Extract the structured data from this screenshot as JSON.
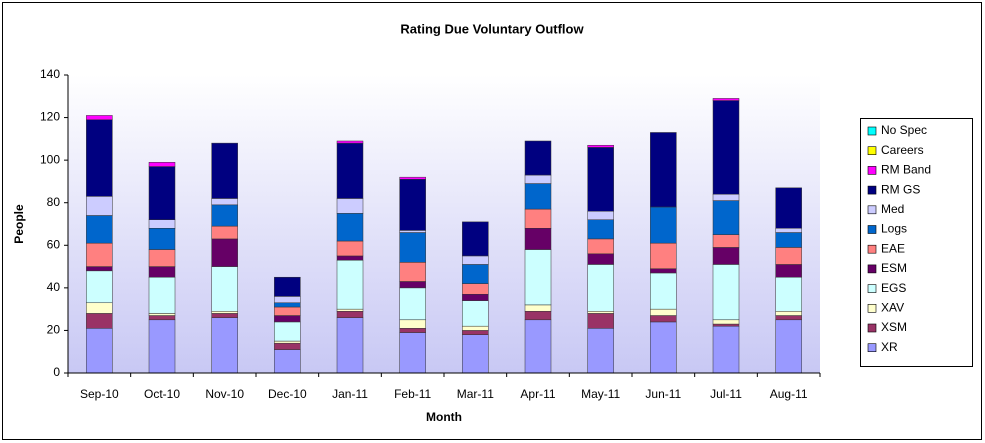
{
  "chart_data": {
    "type": "stacked_bar",
    "title": "Rating Due Voluntary Outflow",
    "x_label": "Month",
    "y_label": "People",
    "categories": [
      "Sep-10",
      "Oct-10",
      "Nov-10",
      "Dec-10",
      "Jan-11",
      "Feb-11",
      "Mar-11",
      "Apr-11",
      "May-11",
      "Jun-11",
      "Jul-11",
      "Aug-11"
    ],
    "series": [
      {
        "name": "XR",
        "color": "#9999ff",
        "values": [
          21,
          25,
          26,
          11,
          26,
          19,
          18,
          25,
          21,
          24,
          22,
          25
        ]
      },
      {
        "name": "XSM",
        "color": "#993366",
        "values": [
          7,
          2,
          2,
          3,
          3,
          2,
          2,
          4,
          7,
          3,
          1,
          2
        ]
      },
      {
        "name": "XAV",
        "color": "#ffffcc",
        "values": [
          5,
          1,
          1,
          1,
          1,
          4,
          2,
          3,
          1,
          3,
          2,
          2
        ]
      },
      {
        "name": "EGS",
        "color": "#ccffff",
        "values": [
          15,
          17,
          21,
          9,
          23,
          15,
          12,
          26,
          22,
          17,
          26,
          16
        ]
      },
      {
        "name": "ESM",
        "color": "#660066",
        "values": [
          2,
          5,
          13,
          3,
          2,
          3,
          3,
          10,
          5,
          2,
          8,
          6
        ]
      },
      {
        "name": "EAE",
        "color": "#ff8080",
        "values": [
          11,
          8,
          6,
          4,
          7,
          9,
          5,
          9,
          7,
          12,
          6,
          8
        ]
      },
      {
        "name": "Logs",
        "color": "#0066cc",
        "values": [
          13,
          10,
          10,
          2,
          13,
          14,
          9,
          12,
          9,
          17,
          16,
          7
        ]
      },
      {
        "name": "Med",
        "color": "#ccccff",
        "values": [
          9,
          4,
          3,
          3,
          7,
          1,
          4,
          4,
          4,
          0,
          3,
          2
        ]
      },
      {
        "name": "RM GS",
        "color": "#000080",
        "values": [
          36,
          25,
          26,
          9,
          26,
          24,
          16,
          16,
          30,
          35,
          44,
          19
        ]
      },
      {
        "name": "RM Band",
        "color": "#ff00ff",
        "values": [
          2,
          2,
          0,
          0,
          1,
          1,
          0,
          0,
          1,
          0,
          1,
          0
        ]
      },
      {
        "name": "Careers",
        "color": "#ffff00",
        "values": [
          0,
          0,
          0,
          0,
          0,
          0,
          0,
          0,
          0,
          0,
          0,
          0
        ]
      },
      {
        "name": "No Spec",
        "color": "#00ffff",
        "values": [
          0,
          0,
          0,
          0,
          0,
          0,
          0,
          0,
          0,
          0,
          0,
          0
        ]
      }
    ],
    "ylim": [
      0,
      140
    ],
    "yticks": [
      0,
      20,
      40,
      60,
      80,
      100,
      120,
      140
    ],
    "grid": false,
    "legend": "right"
  }
}
